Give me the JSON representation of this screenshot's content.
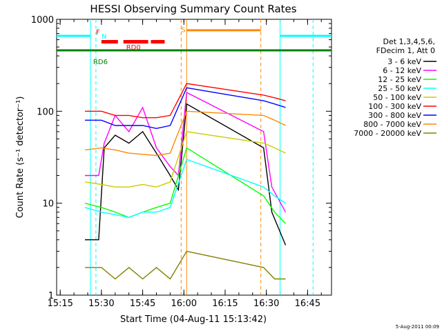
{
  "chart_data": {
    "type": "line",
    "title": "HESSI Observing Summary Count Rates",
    "xlabel": "Start Time (04-Aug-11 15:13:42)",
    "ylabel": "Count Rate (s⁻¹ detector⁻¹)",
    "ylim": [
      1,
      1000
    ],
    "yscale": "log",
    "xlim": [
      "15:13:42",
      "16:53:42"
    ],
    "x_ticks": [
      "15:15",
      "15:30",
      "15:45",
      "16:00",
      "16:15",
      "16:30",
      "16:45"
    ],
    "y_ticks": [
      "1",
      "10",
      "100",
      "1000"
    ],
    "footer": "5-Aug-2011 00:09",
    "legend": {
      "placement": "right",
      "header": [
        "Det 1,3,4,5,6,",
        "FDecim 1, Att 0"
      ]
    },
    "series": [
      {
        "name": "3 - 6 keV",
        "color": "#000000",
        "x": [
          "15:24",
          "15:29",
          "15:31",
          "15:35",
          "15:40",
          "15:45",
          "15:50",
          "15:55",
          "15:58",
          "16:01",
          "16:29",
          "16:32",
          "16:37"
        ],
        "y": [
          4,
          4,
          40,
          55,
          45,
          60,
          35,
          20,
          14,
          120,
          40,
          8,
          3.5
        ]
      },
      {
        "name": "6 - 12 keV",
        "color": "#ff00ff",
        "x": [
          "15:24",
          "15:29",
          "15:31",
          "15:35",
          "15:40",
          "15:45",
          "15:50",
          "15:55",
          "15:58",
          "16:01",
          "16:29",
          "16:32",
          "16:37"
        ],
        "y": [
          20,
          20,
          45,
          90,
          60,
          110,
          40,
          25,
          20,
          160,
          60,
          15,
          8
        ]
      },
      {
        "name": "12 - 25 keV",
        "color": "#00ff00",
        "x": [
          "15:24",
          "15:30",
          "15:35",
          "15:40",
          "15:45",
          "15:50",
          "15:55",
          "16:01",
          "16:29",
          "16:33",
          "16:37"
        ],
        "y": [
          10,
          9,
          8,
          7,
          8,
          9,
          10,
          40,
          12,
          8,
          6
        ]
      },
      {
        "name": "25 - 50 keV",
        "color": "#00ffff",
        "x": [
          "15:24",
          "15:30",
          "15:35",
          "15:40",
          "15:45",
          "15:50",
          "15:55",
          "16:01",
          "16:29",
          "16:33",
          "16:37"
        ],
        "y": [
          9,
          8,
          7.5,
          7,
          8,
          8,
          9,
          30,
          15,
          12,
          10
        ]
      },
      {
        "name": "50 - 100 keV",
        "color": "#cccc00",
        "x": [
          "15:24",
          "15:30",
          "15:35",
          "15:40",
          "15:45",
          "15:50",
          "15:55",
          "16:01",
          "16:29",
          "16:33",
          "16:37"
        ],
        "y": [
          17,
          16,
          15,
          15,
          16,
          15,
          17,
          60,
          45,
          40,
          35
        ]
      },
      {
        "name": "100 - 300 keV",
        "color": "#ff0000",
        "x": [
          "15:24",
          "15:30",
          "15:35",
          "15:40",
          "15:45",
          "15:50",
          "15:55",
          "16:01",
          "16:29",
          "16:33",
          "16:37"
        ],
        "y": [
          100,
          100,
          90,
          90,
          85,
          85,
          90,
          200,
          150,
          140,
          130
        ]
      },
      {
        "name": "300 - 800 keV",
        "color": "#0000ff",
        "x": [
          "15:24",
          "15:30",
          "15:35",
          "15:40",
          "15:45",
          "15:50",
          "15:55",
          "16:01",
          "16:29",
          "16:33",
          "16:37"
        ],
        "y": [
          80,
          80,
          70,
          70,
          70,
          65,
          70,
          180,
          130,
          120,
          110
        ]
      },
      {
        "name": "800 - 7000 keV",
        "color": "#ff8800",
        "x": [
          "15:24",
          "15:30",
          "15:35",
          "15:40",
          "15:45",
          "15:50",
          "15:55",
          "16:01",
          "16:29",
          "16:33",
          "16:37"
        ],
        "y": [
          38,
          40,
          38,
          35,
          34,
          33,
          35,
          100,
          90,
          80,
          70
        ]
      },
      {
        "name": "7000 - 20000 keV",
        "color": "#808000",
        "x": [
          "15:24",
          "15:30",
          "15:35",
          "15:40",
          "15:45",
          "15:50",
          "15:55",
          "16:01",
          "16:29",
          "16:33",
          "16:37"
        ],
        "y": [
          2,
          2,
          1.5,
          2,
          1.5,
          2,
          1.5,
          3,
          2,
          1.5,
          1.5
        ]
      }
    ],
    "flags": [
      {
        "label": "N",
        "color": "#00ffff",
        "level": 660
      },
      {
        "label": "F",
        "color": "#ff0000",
        "level": 580
      },
      {
        "label": "RD0",
        "color": "#ff0000",
        "level": 560
      },
      {
        "label": "RD6",
        "color": "#008000",
        "level": 460
      },
      {
        "label": "S",
        "color": "#ff8800",
        "level": 760
      }
    ]
  }
}
